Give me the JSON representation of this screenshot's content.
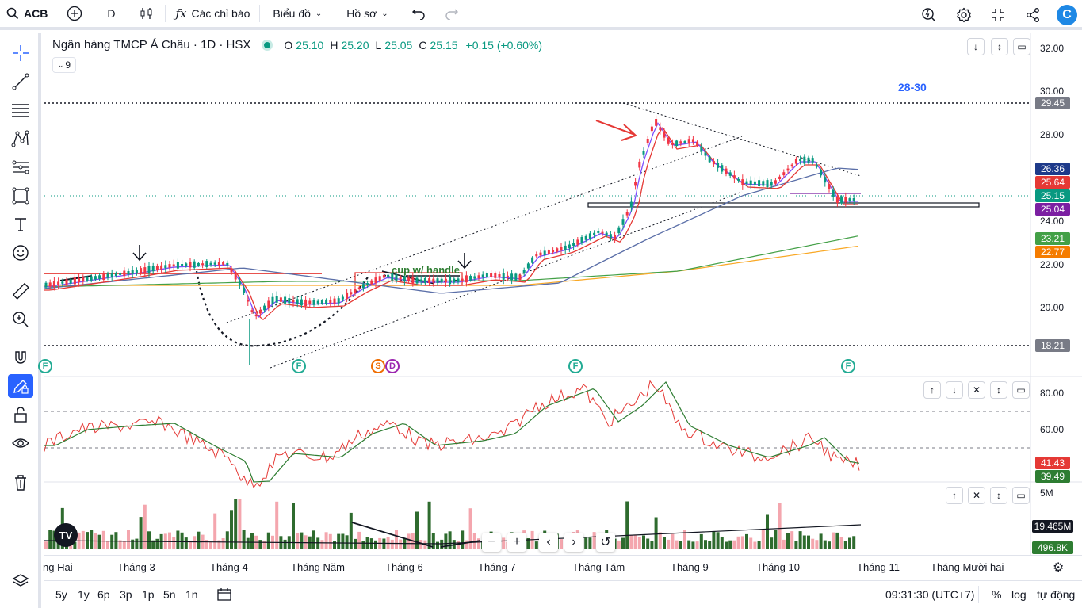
{
  "toolbar": {
    "symbol": "ACB",
    "interval": "D",
    "indicators_label": "Các chỉ báo",
    "chart_type_label": "Biểu đồ",
    "profile_label": "Hồ sơ"
  },
  "legend": {
    "title": "Ngân hàng TMCP Á Châu · 1D · HSX",
    "open_label": "O",
    "open": "25.10",
    "high_label": "H",
    "high": "25.20",
    "low_label": "L",
    "low": "25.05",
    "close_label": "C",
    "close": "25.15",
    "change": "+0.15 (+0.60%)",
    "collapsed_count": "9"
  },
  "annotations": {
    "target": "28-30",
    "pattern": "cup w/ handle"
  },
  "price_axis": {
    "labels": [
      "32.00",
      "30.00",
      "28.00",
      "24.00",
      "22.00",
      "20.00"
    ],
    "tags": [
      {
        "value": "29.45",
        "color": "#787b86"
      },
      {
        "value": "26.36",
        "color": "#1e3a8a"
      },
      {
        "value": "25.64",
        "color": "#e53935"
      },
      {
        "value": "25.15",
        "color": "#089981"
      },
      {
        "value": "25.04",
        "color": "#7b1fa2"
      },
      {
        "value": "23.21",
        "color": "#43a047"
      },
      {
        "value": "22.77",
        "color": "#f57c00"
      },
      {
        "value": "18.21",
        "color": "#787b86"
      }
    ]
  },
  "rsi_axis": {
    "labels": [
      "80.00",
      "60.00"
    ],
    "tags": [
      {
        "value": "41.43",
        "color": "#e53935"
      },
      {
        "value": "39.49",
        "color": "#2e7d32"
      }
    ]
  },
  "volume_axis": {
    "label": "5M",
    "tags": [
      {
        "value": "19.465M",
        "color": "#131722"
      },
      {
        "value": "496.8K",
        "color": "#2e7d32"
      }
    ]
  },
  "events": [
    "F",
    "S",
    "D"
  ],
  "time_axis": [
    "ng Hai",
    "Tháng 3",
    "Tháng 4",
    "Tháng Năm",
    "Tháng 6",
    "Tháng 7",
    "Tháng Tám",
    "Tháng 9",
    "Tháng 10",
    "Tháng 11",
    "Tháng Mười hai"
  ],
  "bottom": {
    "ranges": [
      "5y",
      "1y",
      "6p",
      "3p",
      "1p",
      "5n",
      "1n"
    ],
    "clock": "09:31:30 (UTC+7)",
    "percent": "%",
    "log": "log",
    "auto": "tự động"
  },
  "colors": {
    "up": "#089981",
    "down": "#f23645",
    "accent": "#2962ff",
    "vol_up": "#2e6b2e",
    "vol_down": "#f4a6ae"
  }
}
